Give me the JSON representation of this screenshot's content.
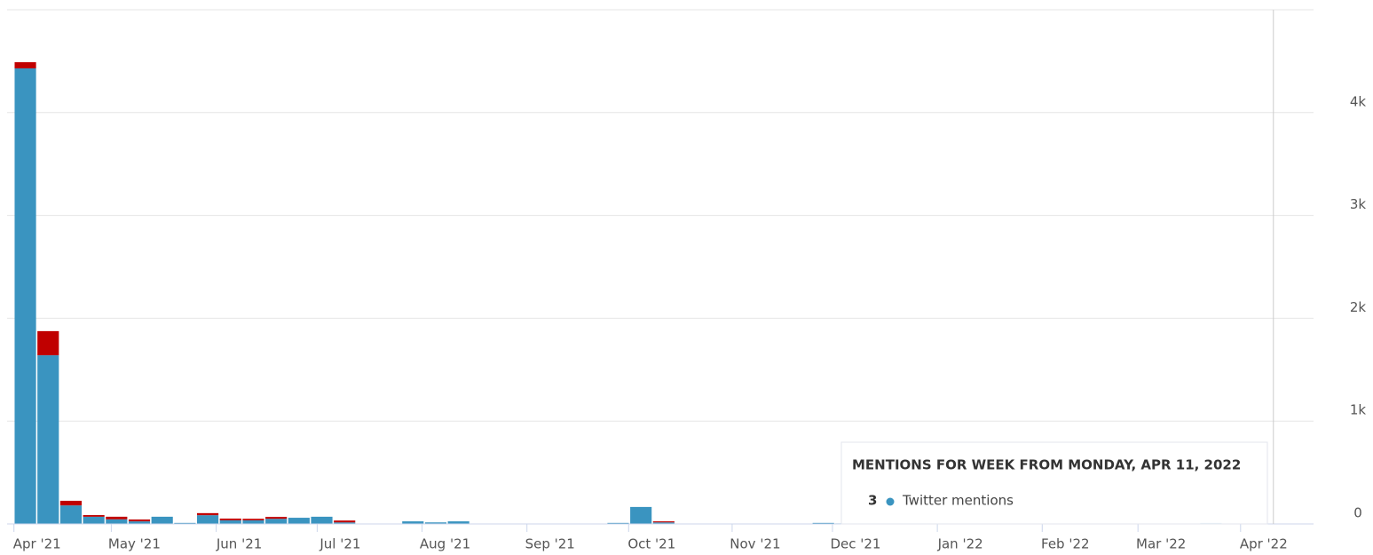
{
  "chart_data": {
    "type": "bar",
    "stacked": true,
    "x": [
      0,
      1,
      2,
      3,
      4,
      5,
      6,
      7,
      8,
      9,
      10,
      11,
      12,
      13,
      14,
      15,
      16,
      17,
      18,
      19,
      20,
      21,
      22,
      23,
      24,
      25,
      26,
      27,
      28,
      29,
      30,
      31,
      32,
      33,
      34,
      35,
      36,
      37,
      38,
      39,
      40,
      41,
      42,
      43,
      44,
      45,
      46,
      47,
      48,
      49,
      50,
      51,
      52,
      53,
      54
    ],
    "series": [
      {
        "name": "Twitter mentions",
        "color": "#3a94c0",
        "values": [
          4430,
          1640,
          180,
          70,
          45,
          25,
          70,
          10,
          85,
          35,
          35,
          50,
          60,
          70,
          15,
          0,
          0,
          25,
          15,
          25,
          0,
          0,
          0,
          0,
          0,
          0,
          10,
          165,
          15,
          0,
          0,
          0,
          0,
          0,
          0,
          10,
          5,
          5,
          5,
          5,
          5,
          0,
          0,
          0,
          0,
          0,
          0,
          0,
          0,
          0,
          0,
          0,
          10,
          0,
          3
        ]
      },
      {
        "color": "#c00000",
        "values": [
          60,
          235,
          45,
          16,
          25,
          18,
          0,
          0,
          20,
          17,
          15,
          18,
          0,
          0,
          18,
          0,
          0,
          0,
          0,
          0,
          0,
          0,
          0,
          0,
          0,
          0,
          0,
          0,
          10,
          0,
          0,
          0,
          0,
          0,
          0,
          0,
          0,
          0,
          0,
          0,
          0,
          0,
          0,
          0,
          0,
          0,
          0,
          0,
          0,
          0,
          0,
          0,
          0,
          0,
          0
        ]
      }
    ],
    "xlim": [
      -0.8,
      56.5
    ],
    "xticks": [
      {
        "value": -0.5,
        "label": "Apr '21"
      },
      {
        "value": 3.77,
        "label": "May '21"
      },
      {
        "value": 8.37,
        "label": "Jun '21"
      },
      {
        "value": 12.8,
        "label": "Jul '21"
      },
      {
        "value": 17.4,
        "label": "Aug '21"
      },
      {
        "value": 22.0,
        "label": "Sep '21"
      },
      {
        "value": 26.46,
        "label": "Oct '21"
      },
      {
        "value": 31.0,
        "label": "Nov '21"
      },
      {
        "value": 35.4,
        "label": "Dec '21"
      },
      {
        "value": 40.0,
        "label": "Jan '22"
      },
      {
        "value": 44.6,
        "label": "Feb '22"
      },
      {
        "value": 48.8,
        "label": "Mar '22"
      },
      {
        "value": 53.3,
        "label": "Apr '22"
      }
    ],
    "ylim": [
      0,
      5000
    ],
    "yticks": [
      0,
      {
        "value": 1000,
        "label": "1k"
      },
      {
        "value": 2000,
        "label": "2k"
      },
      {
        "value": 3000,
        "label": "3k"
      },
      {
        "value": 4000,
        "label": "4k"
      }
    ],
    "grid": true,
    "tooltip": {
      "title": "MENTIONS FOR WEEK FROM MONDAY, APR 11, 2022",
      "index": 54
    }
  }
}
